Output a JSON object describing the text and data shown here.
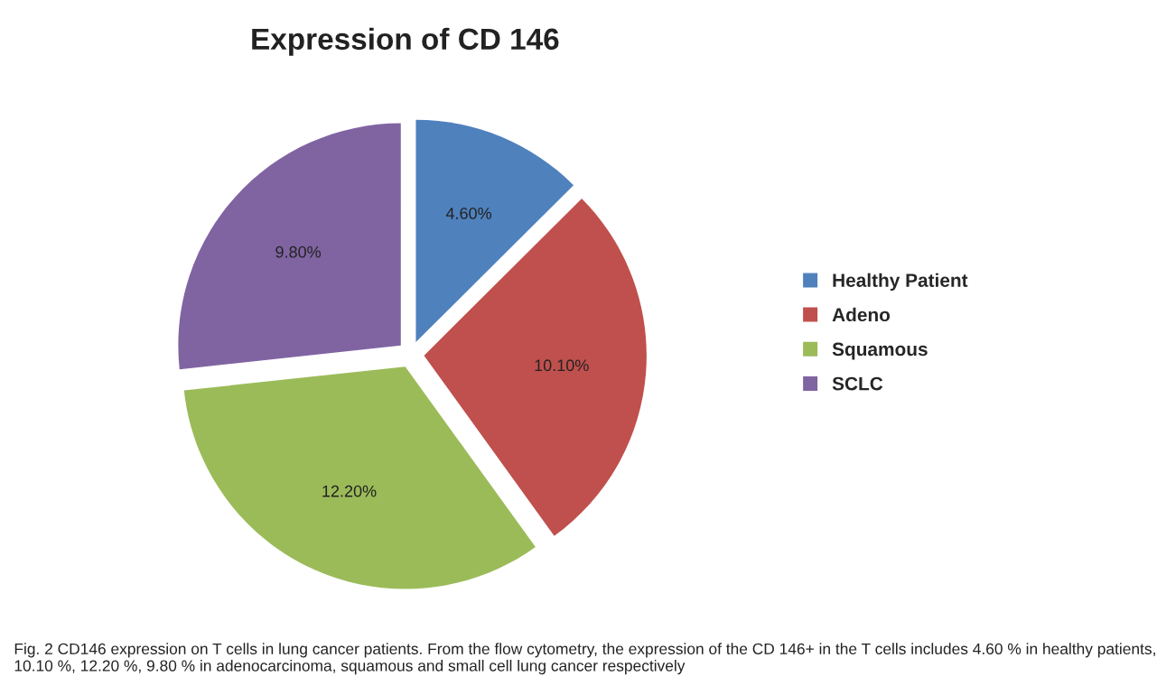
{
  "chart_data": {
    "type": "pie",
    "title": "Expression of CD 146",
    "categories": [
      "Healthy Patient",
      "Adeno",
      "Squamous",
      "SCLC"
    ],
    "values": [
      4.6,
      10.1,
      12.2,
      9.8
    ],
    "value_labels": [
      "4.60%",
      "10.10%",
      "12.20%",
      "9.80%"
    ],
    "colors": [
      "#4f81bd",
      "#c0504d",
      "#9bbb59",
      "#8064a2"
    ],
    "legend": "right",
    "annotations": [
      "Fig. 2 CD146 expression on T cells in lung cancer patients. From the flow cytometry, the expression of the CD 146+ in the T cells includes 4.60 % in healthy patients, 10.10 %, 12.20 %, 9.80 % in adenocarcinoma, squamous and small cell lung cancer respectively"
    ]
  }
}
